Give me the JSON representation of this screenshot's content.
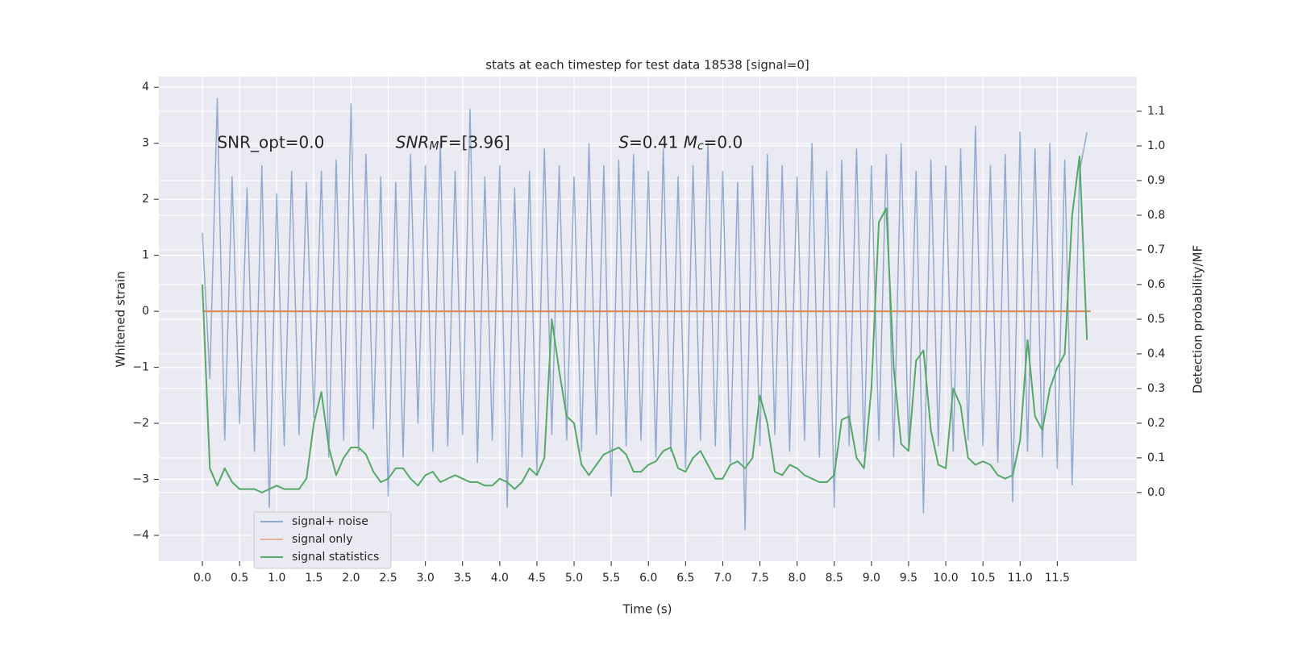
{
  "chart_data": {
    "type": "line",
    "title": "stats at each timestep for test data 18538 [signal=0]",
    "xlabel": "Time (s)",
    "ylabel": "Whitened strain",
    "y2label": "Detection probability/MF",
    "annotations": [
      {
        "x": 0.2,
        "y": 3.0,
        "parts": [
          "SNR_opt=0.0"
        ]
      },
      {
        "x": 2.6,
        "y": 3.0,
        "parts": [
          "SNR",
          "M",
          "F=[3.96]"
        ]
      },
      {
        "x": 5.6,
        "y": 3.0,
        "parts": [
          "S",
          "=0.41   ",
          "M",
          "c",
          "=0.0"
        ]
      }
    ],
    "x": [
      0.0,
      0.1,
      0.2,
      0.3,
      0.4,
      0.5,
      0.6,
      0.7,
      0.8,
      0.9,
      1.0,
      1.1,
      1.2,
      1.3,
      1.4,
      1.5,
      1.6,
      1.7,
      1.8,
      1.9,
      2.0,
      2.1,
      2.2,
      2.3,
      2.4,
      2.5,
      2.6,
      2.7,
      2.8,
      2.9,
      3.0,
      3.1,
      3.2,
      3.3,
      3.4,
      3.5,
      3.6,
      3.7,
      3.8,
      3.9,
      4.0,
      4.1,
      4.2,
      4.3,
      4.4,
      4.5,
      4.6,
      4.7,
      4.8,
      4.9,
      5.0,
      5.1,
      5.2,
      5.3,
      5.4,
      5.5,
      5.6,
      5.7,
      5.8,
      5.9,
      6.0,
      6.1,
      6.2,
      6.3,
      6.4,
      6.5,
      6.6,
      6.7,
      6.8,
      6.9,
      7.0,
      7.1,
      7.2,
      7.3,
      7.4,
      7.5,
      7.6,
      7.7,
      7.8,
      7.9,
      8.0,
      8.1,
      8.2,
      8.3,
      8.4,
      8.5,
      8.6,
      8.7,
      8.8,
      8.9,
      9.0,
      9.1,
      9.2,
      9.3,
      9.4,
      9.5,
      9.6,
      9.7,
      9.8,
      9.9,
      10.0,
      10.1,
      10.2,
      10.3,
      10.4,
      10.5,
      10.6,
      10.7,
      10.8,
      10.9,
      11.0,
      11.1,
      11.2,
      11.3,
      11.4,
      11.5,
      11.6,
      11.7,
      11.8,
      11.9
    ],
    "series": [
      {
        "name": "signal+ noise",
        "color": "#4c72b0",
        "values": [
          1.4,
          -1.2,
          3.8,
          -2.3,
          2.4,
          -2.0,
          2.2,
          -2.5,
          2.6,
          -3.5,
          2.1,
          -2.4,
          2.5,
          -2.2,
          2.3,
          -1.9,
          2.5,
          -2.6,
          2.7,
          -2.3,
          3.7,
          -2.5,
          2.8,
          -2.1,
          2.4,
          -3.3,
          2.3,
          -2.6,
          2.8,
          -2.0,
          2.6,
          -2.5,
          3.0,
          -2.4,
          2.5,
          -2.2,
          3.6,
          -2.7,
          2.4,
          -2.3,
          2.6,
          -3.5,
          2.2,
          -2.6,
          2.5,
          -2.9,
          2.9,
          -2.2,
          2.6,
          -2.3,
          2.4,
          -2.5,
          3.0,
          -2.2,
          2.6,
          -3.3,
          2.7,
          -2.4,
          2.8,
          -2.3,
          2.5,
          -2.6,
          2.9,
          -2.5,
          2.4,
          -2.8,
          2.6,
          -2.3,
          3.0,
          -2.4,
          2.5,
          -2.7,
          2.3,
          -3.9,
          2.6,
          -2.4,
          2.8,
          -2.2,
          2.6,
          -2.5,
          2.4,
          -2.3,
          3.0,
          -2.6,
          2.5,
          -3.5,
          2.7,
          -2.4,
          2.9,
          -2.5,
          2.6,
          -2.3,
          2.8,
          -2.6,
          3.0,
          -2.4,
          2.5,
          -3.6,
          2.7,
          -2.4,
          2.6,
          -2.5,
          2.9,
          -2.3,
          3.3,
          -2.4,
          2.6,
          -2.7,
          2.8,
          -3.4,
          3.2,
          -2.5,
          2.9,
          -2.6,
          3.0,
          -2.8,
          2.7,
          -3.1,
          2.5,
          3.2
        ]
      },
      {
        "name": "signal only",
        "color": "#dd8452",
        "x": [
          0.0,
          11.95
        ],
        "values": [
          0,
          0
        ]
      },
      {
        "name": "signal statistics",
        "color": "#55a868",
        "axis": "y2",
        "values": [
          0.6,
          0.07,
          0.02,
          0.07,
          0.03,
          0.01,
          0.01,
          0.01,
          0.0,
          0.01,
          0.02,
          0.01,
          0.01,
          0.01,
          0.04,
          0.2,
          0.29,
          0.13,
          0.05,
          0.1,
          0.13,
          0.13,
          0.11,
          0.06,
          0.03,
          0.04,
          0.07,
          0.07,
          0.04,
          0.02,
          0.05,
          0.06,
          0.03,
          0.04,
          0.05,
          0.04,
          0.03,
          0.03,
          0.02,
          0.02,
          0.04,
          0.03,
          0.01,
          0.03,
          0.07,
          0.05,
          0.1,
          0.5,
          0.35,
          0.22,
          0.2,
          0.08,
          0.05,
          0.08,
          0.11,
          0.12,
          0.13,
          0.11,
          0.06,
          0.06,
          0.08,
          0.09,
          0.12,
          0.13,
          0.07,
          0.06,
          0.1,
          0.12,
          0.08,
          0.04,
          0.04,
          0.08,
          0.09,
          0.07,
          0.1,
          0.28,
          0.2,
          0.06,
          0.05,
          0.08,
          0.07,
          0.05,
          0.04,
          0.03,
          0.03,
          0.05,
          0.21,
          0.22,
          0.1,
          0.07,
          0.3,
          0.78,
          0.82,
          0.36,
          0.14,
          0.12,
          0.38,
          0.41,
          0.18,
          0.08,
          0.07,
          0.3,
          0.25,
          0.1,
          0.08,
          0.09,
          0.08,
          0.05,
          0.04,
          0.05,
          0.15,
          0.44,
          0.22,
          0.18,
          0.3,
          0.36,
          0.4,
          0.8,
          0.97,
          0.44
        ]
      }
    ],
    "xlim": [
      -0.586,
      12.57
    ],
    "xticks": [
      {
        "value": 0.0,
        "label": "0.0"
      },
      {
        "value": 0.5,
        "label": "0.5"
      },
      {
        "value": 1.0,
        "label": "1.0"
      },
      {
        "value": 1.5,
        "label": "1.5"
      },
      {
        "value": 2.0,
        "label": "2.0"
      },
      {
        "value": 2.5,
        "label": "2.5"
      },
      {
        "value": 3.0,
        "label": "3.0"
      },
      {
        "value": 3.5,
        "label": "3.5"
      },
      {
        "value": 4.0,
        "label": "4.0"
      },
      {
        "value": 4.5,
        "label": "4.5"
      },
      {
        "value": 5.0,
        "label": "5.0"
      },
      {
        "value": 5.5,
        "label": "5.5"
      },
      {
        "value": 6.0,
        "label": "6.0"
      },
      {
        "value": 6.5,
        "label": "6.5"
      },
      {
        "value": 7.0,
        "label": "7.0"
      },
      {
        "value": 7.5,
        "label": "7.5"
      },
      {
        "value": 8.0,
        "label": "8.0"
      },
      {
        "value": 8.5,
        "label": "8.5"
      },
      {
        "value": 9.0,
        "label": "9.0"
      },
      {
        "value": 9.5,
        "label": "9.5"
      },
      {
        "value": 10.0,
        "label": "10.0"
      },
      {
        "value": 10.5,
        "label": "10.5"
      },
      {
        "value": 11.0,
        "label": "11.0"
      },
      {
        "value": 11.5,
        "label": "11.5"
      }
    ],
    "ylim": [
      -4.46,
      4.19
    ],
    "yticks": [
      {
        "value": -4,
        "label": "−4"
      },
      {
        "value": -3,
        "label": "−3"
      },
      {
        "value": -2,
        "label": "−2"
      },
      {
        "value": -1,
        "label": "−1"
      },
      0,
      1,
      2,
      3,
      4
    ],
    "y2lim": [
      -0.198,
      1.2
    ],
    "y2ticks": [
      {
        "value": 0.0,
        "label": "0.0"
      },
      0.1,
      0.2,
      0.3,
      0.4,
      0.5,
      0.6,
      0.7,
      0.8,
      0.9,
      {
        "value": 1.0,
        "label": "1.0"
      },
      1.1
    ],
    "grid": true,
    "legend": "lower left"
  }
}
